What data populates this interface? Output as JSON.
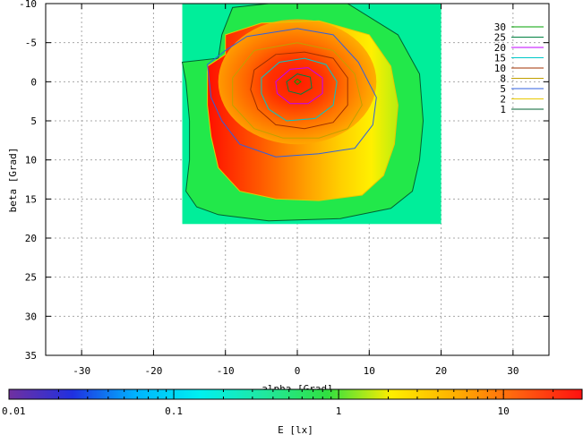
{
  "chart_data": {
    "type": "heatmap",
    "title": "",
    "xlabel": "alpha [Grad]",
    "ylabel": "beta [Grad]",
    "xlim": [
      -35,
      35
    ],
    "ylim": [
      35,
      -10
    ],
    "y_axis_inverted": true,
    "grid": true,
    "x_ticks": [
      -30,
      -20,
      -10,
      0,
      10,
      20,
      30
    ],
    "y_ticks": [
      -10,
      -5,
      0,
      5,
      10,
      15,
      20,
      25,
      30,
      35
    ],
    "data_extent": {
      "alpha": [
        -16,
        20
      ],
      "beta": [
        -10,
        18.2
      ]
    },
    "peak": {
      "alpha": 0,
      "beta": 0,
      "value": 30
    },
    "contour_levels": [
      {
        "label": "30",
        "value": 30,
        "color": "#00a000"
      },
      {
        "label": "25",
        "value": 25,
        "color": "#008040"
      },
      {
        "label": "20",
        "value": 20,
        "color": "#c000ff"
      },
      {
        "label": "15",
        "value": 15,
        "color": "#00c8c8"
      },
      {
        "label": "10",
        "value": 10,
        "color": "#a03000"
      },
      {
        "label": "8",
        "value": 8,
        "color": "#c0a000"
      },
      {
        "label": "5",
        "value": 5,
        "color": "#3060e0"
      },
      {
        "label": "2",
        "value": 2,
        "color": "#e8c800"
      },
      {
        "label": "1",
        "value": 1,
        "color": "#006030"
      }
    ],
    "contours": [
      {
        "value": 1,
        "points": [
          [
            -16,
            -2.5
          ],
          [
            -11,
            -3
          ],
          [
            -10.5,
            -6
          ],
          [
            -9,
            -9.5
          ],
          [
            -4,
            -10
          ],
          [
            7,
            -10
          ],
          [
            14,
            -6
          ],
          [
            17,
            -1
          ],
          [
            17.5,
            5
          ],
          [
            17,
            10
          ],
          [
            16,
            14
          ],
          [
            13,
            16.2
          ],
          [
            6,
            17.5
          ],
          [
            -4,
            17.8
          ],
          [
            -11,
            17
          ],
          [
            -14,
            16
          ],
          [
            -15.5,
            14
          ],
          [
            -15,
            10
          ],
          [
            -15,
            5
          ],
          [
            -15.5,
            0
          ]
        ]
      },
      {
        "value": 2,
        "points": [
          [
            -12.5,
            -2
          ],
          [
            -10,
            -3.5
          ],
          [
            -10,
            -6
          ],
          [
            -5,
            -7.5
          ],
          [
            3,
            -7.8
          ],
          [
            10,
            -6
          ],
          [
            13,
            -2
          ],
          [
            14,
            3
          ],
          [
            13.5,
            8
          ],
          [
            12,
            12
          ],
          [
            9,
            14.5
          ],
          [
            3,
            15.2
          ],
          [
            -3,
            15
          ],
          [
            -8,
            14
          ],
          [
            -11,
            11
          ],
          [
            -12,
            7
          ],
          [
            -12.5,
            3
          ]
        ]
      },
      {
        "value": 5,
        "points": [
          [
            -12.5,
            -2.2
          ],
          [
            -10,
            -4
          ],
          [
            -7,
            -5.8
          ],
          [
            0,
            -6.8
          ],
          [
            5,
            -6
          ],
          [
            8.5,
            -2.5
          ],
          [
            11,
            2
          ],
          [
            10.5,
            5.5
          ],
          [
            8,
            8.5
          ],
          [
            3,
            9.2
          ],
          [
            -3,
            9.6
          ],
          [
            -8,
            8
          ],
          [
            -10.5,
            5
          ],
          [
            -12,
            2
          ]
        ]
      },
      {
        "value": 8,
        "points": [
          [
            -9,
            -0.5
          ],
          [
            -6,
            -4
          ],
          [
            0,
            -5
          ],
          [
            5,
            -4
          ],
          [
            8,
            -1
          ],
          [
            9,
            3
          ],
          [
            7,
            6
          ],
          [
            3,
            7.2
          ],
          [
            -2,
            7.2
          ],
          [
            -6,
            6
          ],
          [
            -9,
            3
          ]
        ]
      },
      {
        "value": 10,
        "points": [
          [
            -6,
            -1.5
          ],
          [
            -3,
            -3.5
          ],
          [
            1,
            -3.8
          ],
          [
            5,
            -3
          ],
          [
            7,
            -0.5
          ],
          [
            7,
            3
          ],
          [
            5,
            5.2
          ],
          [
            1,
            6
          ],
          [
            -3,
            5.5
          ],
          [
            -5.5,
            3.5
          ],
          [
            -6.5,
            1
          ]
        ]
      },
      {
        "value": 15,
        "points": [
          [
            -5,
            -0.5
          ],
          [
            -2.5,
            -2.5
          ],
          [
            1,
            -3
          ],
          [
            4,
            -2.2
          ],
          [
            5.5,
            0
          ],
          [
            5,
            3
          ],
          [
            2.5,
            4.7
          ],
          [
            -1.5,
            5
          ],
          [
            -4,
            3.5
          ],
          [
            -5,
            1.5
          ]
        ]
      },
      {
        "value": 20,
        "points": [
          [
            -3,
            0
          ],
          [
            -1,
            -1.6
          ],
          [
            1.5,
            -1.8
          ],
          [
            3.5,
            -0.5
          ],
          [
            3.5,
            1.5
          ],
          [
            1.5,
            2.8
          ],
          [
            -1,
            2.8
          ],
          [
            -2.8,
            1.5
          ]
        ]
      },
      {
        "value": 25,
        "points": [
          [
            -1.5,
            0
          ],
          [
            0,
            -1
          ],
          [
            1.8,
            -0.6
          ],
          [
            2,
            0.8
          ],
          [
            0.5,
            1.6
          ],
          [
            -1.2,
            1.2
          ]
        ]
      },
      {
        "value": 30,
        "points": [
          [
            -0.4,
            0
          ],
          [
            0,
            -0.35
          ],
          [
            0.5,
            0
          ],
          [
            0,
            0.35
          ]
        ]
      }
    ],
    "colorbar": {
      "label": "E [lx]",
      "scale": "log",
      "range": [
        0.01,
        30
      ],
      "ticks": [
        {
          "value": 0.01,
          "label": "0.01"
        },
        {
          "value": 0.1,
          "label": "0.1"
        },
        {
          "value": 1,
          "label": "1"
        },
        {
          "value": 10,
          "label": "10"
        }
      ],
      "colors": [
        "#7030a0",
        "#2030e0",
        "#00b4ff",
        "#00f0f0",
        "#20e8a0",
        "#30e040",
        "#ffee00",
        "#ffb000",
        "#ff6010",
        "#ff1010"
      ]
    }
  }
}
